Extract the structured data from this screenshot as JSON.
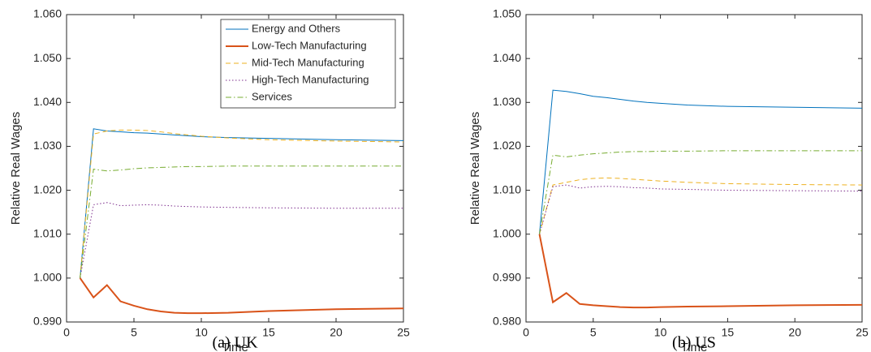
{
  "chart_data": [
    {
      "type": "line",
      "caption": "(a) UK",
      "xlabel": "Time",
      "ylabel": "Relative Real Wages",
      "x": [
        1,
        2,
        3,
        4,
        5,
        6,
        7,
        8,
        9,
        10,
        12,
        15,
        20,
        25
      ],
      "xlim": [
        0,
        25
      ],
      "xticks": [
        0,
        5,
        10,
        15,
        20,
        25
      ],
      "ylim": [
        0.99,
        1.06
      ],
      "yticks": [
        {
          "value": 0.99,
          "label": "0.990"
        },
        {
          "value": 1.0,
          "label": "1.000"
        },
        {
          "value": 1.01,
          "label": "1.010"
        },
        {
          "value": 1.02,
          "label": "1.020"
        },
        {
          "value": 1.03,
          "label": "1.030"
        },
        {
          "value": 1.04,
          "label": "1.040"
        },
        {
          "value": 1.05,
          "label": "1.050"
        },
        {
          "value": 1.06,
          "label": "1.060"
        }
      ],
      "legend": "upper right",
      "series": [
        {
          "name": "Energy and Others",
          "color": "#0072BD",
          "style": "solid",
          "linewidth": 1,
          "values": [
            1.0,
            1.034,
            1.0335,
            1.0333,
            1.0331,
            1.033,
            1.0328,
            1.0326,
            1.0324,
            1.0322,
            1.032,
            1.0318,
            1.0315,
            1.0313
          ]
        },
        {
          "name": "Low-Tech Manufacturing",
          "color": "#D95319",
          "style": "solid",
          "linewidth": 2,
          "values": [
            1.0,
            0.9956,
            0.9984,
            0.9947,
            0.9937,
            0.9929,
            0.9924,
            0.9921,
            0.992,
            0.992,
            0.9921,
            0.9925,
            0.9929,
            0.9931
          ]
        },
        {
          "name": "Mid-Tech Manufacturing",
          "color": "#EDB120",
          "style": "dashed",
          "linewidth": 1,
          "values": [
            1.0,
            1.0328,
            1.0335,
            1.0337,
            1.0337,
            1.0336,
            1.0333,
            1.0329,
            1.0326,
            1.0323,
            1.0319,
            1.0315,
            1.0312,
            1.031
          ]
        },
        {
          "name": "High-Tech Manufacturing",
          "color": "#7E2F8E",
          "style": "dotted",
          "linewidth": 1,
          "values": [
            1.0,
            1.0167,
            1.0172,
            1.0165,
            1.0166,
            1.0167,
            1.0166,
            1.0164,
            1.0163,
            1.0162,
            1.0161,
            1.016,
            1.0159,
            1.0159
          ]
        },
        {
          "name": "Services",
          "color": "#77AC30",
          "style": "dashdot",
          "linewidth": 1,
          "values": [
            1.0,
            1.0248,
            1.0244,
            1.0246,
            1.0249,
            1.0251,
            1.0252,
            1.0253,
            1.0254,
            1.0254,
            1.0255,
            1.0255,
            1.0255,
            1.0255
          ]
        }
      ]
    },
    {
      "type": "line",
      "caption": "(b) US",
      "xlabel": "Time",
      "ylabel": "Relative Real Wages",
      "x": [
        1,
        2,
        3,
        4,
        5,
        6,
        7,
        8,
        9,
        10,
        12,
        15,
        20,
        25
      ],
      "xlim": [
        0,
        25
      ],
      "xticks": [
        0,
        5,
        10,
        15,
        20,
        25
      ],
      "ylim": [
        0.98,
        1.05
      ],
      "yticks": [
        {
          "value": 0.98,
          "label": "0.980"
        },
        {
          "value": 0.99,
          "label": "0.990"
        },
        {
          "value": 1.0,
          "label": "1.000"
        },
        {
          "value": 1.01,
          "label": "1.010"
        },
        {
          "value": 1.02,
          "label": "1.020"
        },
        {
          "value": 1.03,
          "label": "1.030"
        },
        {
          "value": 1.04,
          "label": "1.040"
        },
        {
          "value": 1.05,
          "label": "1.050"
        }
      ],
      "series": [
        {
          "color": "#0072BD",
          "style": "solid",
          "linewidth": 1,
          "values": [
            1.0,
            1.0328,
            1.0325,
            1.032,
            1.0314,
            1.0311,
            1.0307,
            1.0303,
            1.03,
            1.0298,
            1.0294,
            1.0291,
            1.0289,
            1.0287
          ]
        },
        {
          "color": "#D95319",
          "style": "solid",
          "linewidth": 2,
          "values": [
            1.0,
            0.9845,
            0.9866,
            0.9841,
            0.9838,
            0.9836,
            0.9834,
            0.9833,
            0.9833,
            0.9834,
            0.9835,
            0.9836,
            0.9838,
            0.9839
          ]
        },
        {
          "color": "#EDB120",
          "style": "dashed",
          "linewidth": 1,
          "values": [
            1.0,
            1.0112,
            1.0118,
            1.0124,
            1.0127,
            1.0128,
            1.0127,
            1.0125,
            1.0123,
            1.0121,
            1.0118,
            1.0115,
            1.0113,
            1.0112
          ]
        },
        {
          "color": "#7E2F8E",
          "style": "dotted",
          "linewidth": 1,
          "values": [
            1.0,
            1.0108,
            1.0112,
            1.0105,
            1.0108,
            1.0109,
            1.0108,
            1.0106,
            1.0105,
            1.0103,
            1.0102,
            1.01,
            1.0099,
            1.0098
          ]
        },
        {
          "color": "#77AC30",
          "style": "dashdot",
          "linewidth": 1,
          "values": [
            1.0,
            1.018,
            1.0176,
            1.018,
            1.0183,
            1.0185,
            1.0187,
            1.0188,
            1.0188,
            1.0189,
            1.0189,
            1.019,
            1.019,
            1.019
          ]
        }
      ]
    }
  ]
}
